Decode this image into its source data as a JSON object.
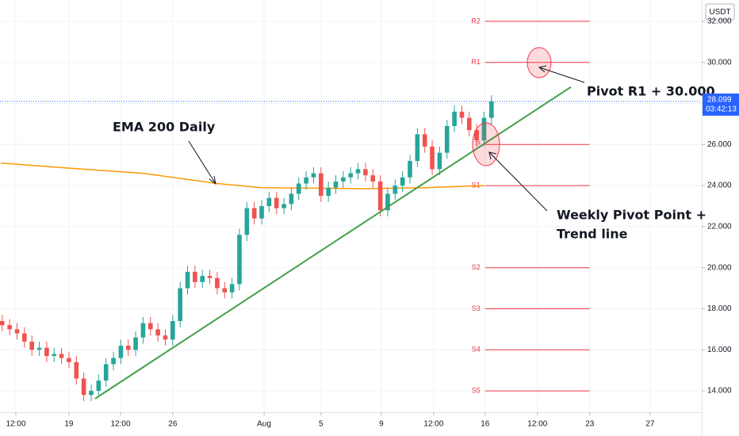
{
  "chart_data": {
    "type": "candlestick",
    "currency": "USDT",
    "xlim": [
      -4.65,
      42.68
    ],
    "ylim": [
      12.96,
      33.04
    ],
    "xticks": [
      {
        "value": -3.58,
        "label": "12:00"
      },
      {
        "value": 0,
        "label": "19"
      },
      {
        "value": 3.48,
        "label": "12:00"
      },
      {
        "value": 7.0,
        "label": "26"
      },
      {
        "value": 13.16,
        "label": "Aug"
      },
      {
        "value": 17.0,
        "label": "5"
      },
      {
        "value": 21.07,
        "label": "9"
      },
      {
        "value": 24.6,
        "label": "12:00"
      },
      {
        "value": 28.07,
        "label": "16"
      },
      {
        "value": 31.6,
        "label": "12:00"
      },
      {
        "value": 35.13,
        "label": "23"
      },
      {
        "value": 39.2,
        "label": "27"
      }
    ],
    "yticks": [
      {
        "value": 14,
        "label": "14.000"
      },
      {
        "value": 16,
        "label": "16.000"
      },
      {
        "value": 18,
        "label": "18.000"
      },
      {
        "value": 20,
        "label": "20.000"
      },
      {
        "value": 22,
        "label": "22.000"
      },
      {
        "value": 24,
        "label": "24.000"
      },
      {
        "value": 26,
        "label": "26.000"
      },
      {
        "value": 28,
        "label": "28.000"
      },
      {
        "value": 30,
        "label": "30.000"
      },
      {
        "value": 32,
        "label": "32.000"
      }
    ],
    "up_color": "#26a69a",
    "down_color": "#ef5350",
    "x": [
      -4.5,
      -4,
      -3.5,
      -3,
      -2.5,
      -2,
      -1.5,
      -1,
      -0.5,
      0,
      0.5,
      1,
      1.5,
      2,
      2.5,
      3,
      3.5,
      4,
      4.5,
      5,
      5.5,
      6,
      6.5,
      7,
      7.5,
      8,
      8.5,
      9,
      9.5,
      10,
      10.5,
      11,
      11.5,
      12,
      12.5,
      13,
      13.5,
      14,
      14.5,
      15,
      15.5,
      16,
      16.5,
      17,
      17.5,
      18,
      18.5,
      19,
      19.5,
      20,
      20.5,
      21,
      21.5,
      22,
      22.5,
      23,
      23.5,
      24,
      24.5,
      25,
      25.5,
      26,
      26.5,
      27,
      27.5,
      28,
      28.5
    ],
    "open": [
      17.4,
      17.2,
      17.0,
      16.8,
      16.4,
      16.0,
      16.1,
      15.7,
      15.8,
      15.6,
      15.4,
      14.6,
      13.8,
      14.0,
      14.5,
      15.3,
      15.6,
      16.2,
      16.0,
      16.6,
      17.3,
      17.0,
      16.7,
      16.5,
      17.4,
      19.0,
      19.8,
      19.3,
      19.6,
      19.5,
      19.0,
      18.8,
      19.2,
      21.6,
      22.9,
      22.4,
      23.0,
      23.4,
      22.9,
      23.1,
      23.6,
      24.1,
      24.4,
      24.6,
      23.5,
      23.9,
      24.2,
      24.4,
      24.6,
      24.8,
      24.5,
      24.2,
      22.8,
      23.6,
      24.0,
      24.4,
      25.2,
      26.5,
      25.9,
      24.8,
      25.6,
      26.9,
      27.6,
      27.3,
      26.7,
      26.2,
      27.3
    ],
    "high": [
      17.7,
      17.5,
      17.3,
      17.1,
      16.7,
      16.4,
      16.4,
      16.1,
      16.1,
      15.9,
      15.7,
      14.9,
      14.3,
      14.8,
      15.6,
      15.9,
      16.5,
      16.5,
      16.9,
      17.6,
      17.6,
      17.3,
      17.0,
      17.7,
      19.3,
      20.1,
      20.1,
      19.9,
      19.9,
      19.8,
      19.3,
      19.5,
      21.9,
      23.2,
      23.2,
      23.3,
      23.7,
      23.7,
      23.4,
      23.9,
      24.4,
      24.7,
      24.9,
      24.9,
      24.2,
      24.5,
      24.7,
      24.9,
      25.1,
      25.1,
      24.8,
      24.5,
      23.9,
      24.3,
      24.7,
      25.5,
      26.8,
      26.8,
      26.2,
      25.9,
      27.2,
      27.9,
      27.9,
      27.6,
      27.0,
      27.6,
      28.4
    ],
    "low": [
      16.9,
      16.7,
      16.5,
      16.1,
      15.7,
      15.7,
      15.4,
      15.4,
      15.3,
      15.1,
      14.3,
      13.5,
      13.5,
      13.7,
      14.2,
      15.0,
      15.3,
      15.7,
      15.7,
      16.3,
      16.7,
      16.4,
      16.2,
      16.2,
      17.1,
      18.7,
      19.0,
      19.0,
      19.2,
      18.7,
      18.5,
      18.5,
      18.9,
      21.3,
      22.1,
      22.1,
      22.7,
      22.6,
      22.6,
      22.8,
      23.3,
      23.8,
      24.1,
      23.2,
      23.2,
      23.6,
      23.9,
      24.1,
      24.3,
      24.2,
      23.9,
      22.5,
      22.5,
      23.3,
      23.7,
      24.1,
      24.9,
      25.6,
      24.5,
      24.5,
      25.3,
      26.6,
      27.0,
      26.4,
      25.9,
      25.9,
      27.0
    ],
    "close": [
      17.2,
      17.0,
      16.8,
      16.4,
      16.0,
      16.1,
      15.7,
      15.8,
      15.6,
      15.4,
      14.6,
      13.8,
      14.0,
      14.5,
      15.3,
      15.6,
      16.2,
      16.0,
      16.6,
      17.3,
      17.0,
      16.7,
      16.5,
      17.4,
      19.0,
      19.8,
      19.3,
      19.6,
      19.5,
      19.0,
      18.8,
      19.2,
      21.6,
      22.9,
      22.4,
      23.0,
      23.4,
      22.9,
      23.1,
      23.6,
      24.1,
      24.4,
      24.6,
      23.5,
      23.9,
      24.2,
      24.4,
      24.6,
      24.8,
      24.5,
      24.2,
      22.8,
      23.6,
      24.0,
      24.4,
      25.2,
      26.5,
      25.9,
      24.8,
      25.6,
      26.9,
      27.6,
      27.3,
      26.7,
      26.2,
      27.3,
      28.1
    ],
    "ema": {
      "color": "#ff9800",
      "x": [
        -4.6,
        0,
        5,
        10,
        13,
        20,
        24,
        28
      ],
      "values": [
        25.1,
        24.85,
        24.6,
        24.1,
        23.9,
        23.85,
        23.9,
        24.0
      ]
    },
    "trendline": {
      "color": "#43a047",
      "x": [
        1.76,
        33.85
      ],
      "values": [
        13.62,
        28.8
      ]
    },
    "pivot_color": "#f23645",
    "pivot_range": [
      28.07,
      35.13
    ],
    "pivots": [
      {
        "label": "R2",
        "value": 32
      },
      {
        "label": "R1",
        "value": 30
      },
      {
        "label": "P",
        "value": 26
      },
      {
        "label": "S1",
        "value": 24
      },
      {
        "label": "S2",
        "value": 20
      },
      {
        "label": "S3",
        "value": 18
      },
      {
        "label": "S4",
        "value": 16
      },
      {
        "label": "S5",
        "value": 14
      }
    ],
    "last_price": {
      "value": 28.099,
      "label": "28.099",
      "countdown": "03:42:13",
      "color": "#2962ff"
    },
    "annotations": {
      "ema": "EMA 200 Daily",
      "r1": "Pivot R1 + 30.000",
      "pivot": [
        "Weekly Pivot Point +",
        "Trend line"
      ]
    }
  }
}
